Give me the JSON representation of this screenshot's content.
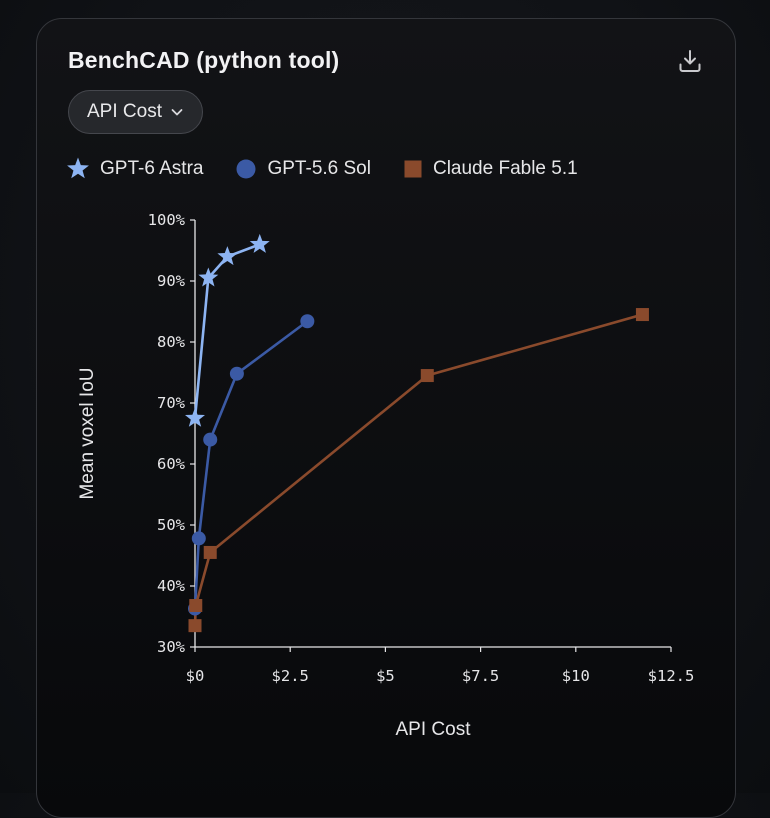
{
  "header": {
    "title": "BenchCAD (python tool)",
    "download_icon": "download-icon"
  },
  "dropdown": {
    "label": "API Cost",
    "icon": "chevron-down-icon"
  },
  "colors": {
    "background": "#0b0d10",
    "gpt6_astra": "#8db4f2",
    "gpt56_sol": "#3b5aa5",
    "claude_fable": "#8a4a2c",
    "axis": "#e6e6e8"
  },
  "chart_data": {
    "type": "line",
    "xlabel": "API Cost",
    "ylabel": "Mean voxel IoU",
    "xlim": [
      0,
      12.5
    ],
    "ylim": [
      30,
      100
    ],
    "x_ticks": [
      0,
      2.5,
      5,
      7.5,
      10,
      12.5
    ],
    "x_tick_labels": [
      "$0",
      "$2.5",
      "$5",
      "$7.5",
      "$10",
      "$12.5"
    ],
    "y_ticks": [
      30,
      40,
      50,
      60,
      70,
      80,
      90,
      100
    ],
    "y_tick_labels": [
      "30%",
      "40%",
      "50%",
      "60%",
      "70%",
      "80%",
      "90%",
      "100%"
    ],
    "grid": false,
    "legend_position": "top-left",
    "series": [
      {
        "name": "GPT-6 Astra",
        "marker": "star",
        "color": "#8db4f2",
        "x": [
          0.0,
          0.35,
          0.85,
          1.7
        ],
        "y": [
          67.5,
          90.5,
          94.0,
          96.0
        ]
      },
      {
        "name": "GPT-5.6 Sol",
        "marker": "circle",
        "color": "#3b5aa5",
        "x": [
          0.0,
          0.1,
          0.4,
          1.1,
          2.95
        ],
        "y": [
          36.3,
          47.8,
          64.0,
          74.8,
          83.4
        ]
      },
      {
        "name": "Claude Fable 5.1",
        "marker": "square",
        "color": "#8a4a2c",
        "x": [
          0.0,
          0.02,
          0.4,
          6.1,
          11.75
        ],
        "y": [
          33.5,
          36.8,
          45.5,
          74.5,
          84.5
        ]
      }
    ]
  }
}
